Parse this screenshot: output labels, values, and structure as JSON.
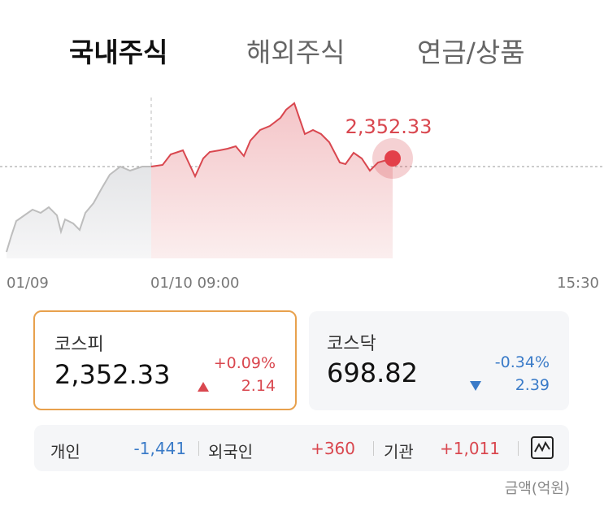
{
  "tabs": [
    "국내주식",
    "해외주식",
    "연금/상품"
  ],
  "chart": {
    "current_label": "2,352.33",
    "x_labels": [
      "01/09",
      "01/10 09:00",
      "15:30"
    ]
  },
  "indices": [
    {
      "name": "코스피",
      "value": "2,352.33",
      "change_pct": "+0.09%",
      "change": "2.14"
    },
    {
      "name": "코스닥",
      "value": "698.82",
      "change_pct": "-0.34%",
      "change": "2.39"
    }
  ],
  "investors": [
    {
      "name": "개인",
      "value": "-1,441"
    },
    {
      "name": "외국인",
      "value": "+360"
    },
    {
      "name": "기관",
      "value": "+1,011"
    }
  ],
  "unit_note": "금액(억원)"
}
